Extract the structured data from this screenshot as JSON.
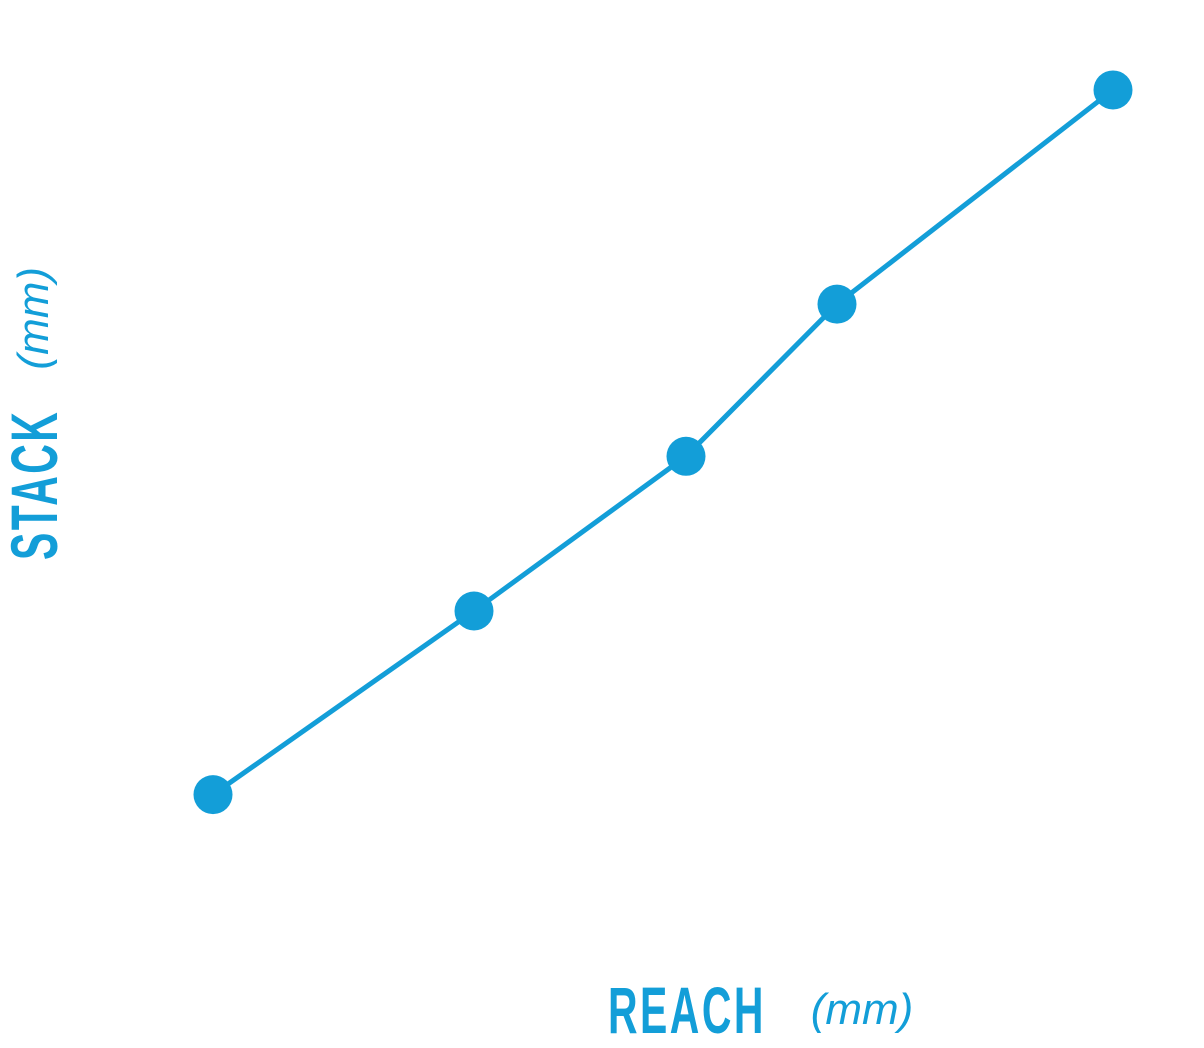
{
  "chart_data": {
    "type": "line",
    "title": "",
    "xlabel": "REACH",
    "xlabel_unit": "(mm)",
    "ylabel": "STACK",
    "ylabel_unit": "(mm)",
    "x": [
      6.3,
      32.4,
      53.6,
      68.7,
      96.3
    ],
    "series": [
      {
        "values": [
          12.4,
          34.0,
          52.2,
          70.1,
          95.3
        ]
      }
    ],
    "xlim": [
      0,
      100
    ],
    "ylim": [
      0,
      100
    ],
    "ticks_shown": false,
    "grid": false,
    "markers": true,
    "color": "#139ed8"
  }
}
